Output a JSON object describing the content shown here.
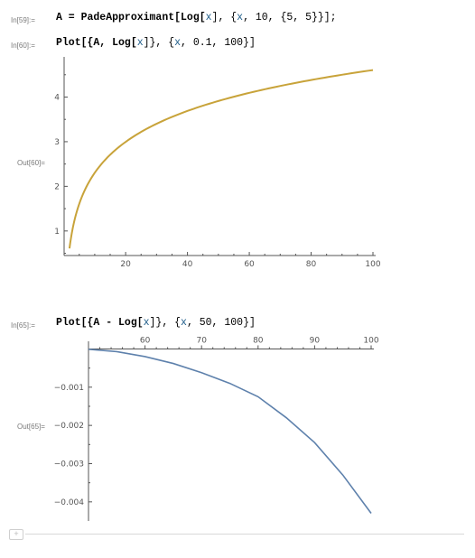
{
  "notebook": {
    "cells": [
      {
        "label": "In[59]:=",
        "code_parts": [
          {
            "t": "A = PadeApproximant[Log[",
            "c": "plain"
          },
          {
            "t": "x",
            "c": "sym"
          },
          {
            "t": "], {",
            "c": "plain"
          },
          {
            "t": "x",
            "c": "sym"
          },
          {
            "t": ", 10, {5, 5}}];",
            "c": "plain"
          }
        ]
      },
      {
        "label": "In[60]:=",
        "code_parts": [
          {
            "t": "Plot[{A, Log[",
            "c": "plain"
          },
          {
            "t": "x",
            "c": "sym"
          },
          {
            "t": "]}, {",
            "c": "plain"
          },
          {
            "t": "x",
            "c": "sym"
          },
          {
            "t": ", 0.1, 100}]",
            "c": "plain"
          }
        ]
      },
      {
        "label": "In[65]:=",
        "code_parts": [
          {
            "t": "Plot[{A - Log[",
            "c": "plain"
          },
          {
            "t": "x",
            "c": "sym"
          },
          {
            "t": "]}, {",
            "c": "plain"
          },
          {
            "t": "x",
            "c": "sym"
          },
          {
            "t": ", 50, 100}]",
            "c": "plain"
          }
        ]
      }
    ],
    "outputs": {
      "out60_label": "Out[60]=",
      "out65_label": "Out[65]="
    },
    "new_cell_symbol": "+"
  },
  "colors": {
    "curve_log": "#c8a33a",
    "curve_diff": "#5e81ac",
    "axis": "#555555"
  },
  "chart_data": [
    {
      "type": "line",
      "title": "",
      "xlabel": "",
      "ylabel": "",
      "xlim": [
        0.1,
        100
      ],
      "ylim": [
        0.45,
        4.9
      ],
      "x_ticks": [
        20,
        40,
        60,
        80,
        100
      ],
      "y_ticks": [
        1,
        2,
        3,
        4
      ],
      "grid": false,
      "series": [
        {
          "function": "log",
          "x_range": [
            1.84,
            100
          ],
          "samples": 120
        }
      ]
    },
    {
      "type": "line",
      "title": "",
      "xlabel": "",
      "ylabel": "",
      "xlim": [
        50,
        100
      ],
      "ylim": [
        -0.0045,
        0.0002
      ],
      "x_ticks": [
        60,
        70,
        80,
        90,
        100
      ],
      "y_ticks": [
        -0.001,
        -0.002,
        -0.003,
        -0.004
      ],
      "y_tick_labels": [
        "-0.001",
        "-0.002",
        "-0.003",
        "-0.004"
      ],
      "grid": false,
      "series": [
        {
          "name": "",
          "x": [
            50,
            55,
            60,
            65,
            70,
            75,
            80,
            85,
            90,
            95,
            100
          ],
          "y": [
            -1e-05,
            -7e-05,
            -0.0002,
            -0.00038,
            -0.00062,
            -0.0009,
            -0.00125,
            -0.0018,
            -0.00245,
            -0.0033,
            -0.0043
          ]
        }
      ]
    }
  ]
}
